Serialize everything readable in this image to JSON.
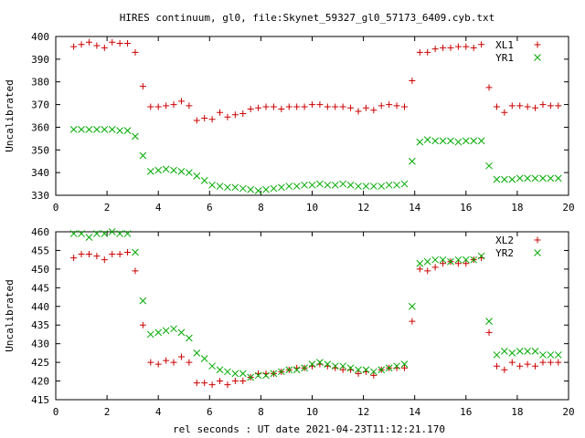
{
  "title": "HIRES continuum, gl0, file:Skynet_59327_gl0_57173_6409.cyb.txt",
  "xlabel": "rel seconds : UT date 2021-04-23T11:12:21.170",
  "colors": {
    "xl": "#cc0000",
    "yr": "#00aa00",
    "axis": "#000000"
  },
  "chart_data": [
    {
      "type": "scatter",
      "ylabel": "Uncalibrated",
      "xlim": [
        0,
        20
      ],
      "ylim": [
        330,
        400
      ],
      "xticks": [
        0,
        2,
        4,
        6,
        8,
        10,
        12,
        14,
        16,
        18,
        20
      ],
      "yticks": [
        330,
        340,
        350,
        360,
        370,
        380,
        390,
        400
      ],
      "legend_position": "top-right",
      "series": [
        {
          "name": "XL1",
          "marker": "plus",
          "x": [
            0.7,
            1.0,
            1.3,
            1.6,
            1.9,
            2.2,
            2.5,
            2.8,
            3.1,
            3.4,
            3.7,
            4.0,
            4.3,
            4.6,
            4.9,
            5.2,
            5.5,
            5.8,
            6.1,
            6.4,
            6.7,
            7.0,
            7.3,
            7.6,
            7.9,
            8.2,
            8.5,
            8.8,
            9.1,
            9.4,
            9.7,
            10.0,
            10.3,
            10.6,
            10.9,
            11.2,
            11.5,
            11.8,
            12.1,
            12.4,
            12.7,
            13.0,
            13.3,
            13.6,
            13.9,
            14.2,
            14.5,
            14.8,
            15.1,
            15.4,
            15.7,
            16.0,
            16.3,
            16.6,
            16.9,
            17.2,
            17.5,
            17.8,
            18.1,
            18.4,
            18.7,
            19.0,
            19.3,
            19.6
          ],
          "y": [
            395.5,
            396.5,
            397.5,
            396,
            395,
            397.5,
            397,
            397,
            393,
            378,
            369,
            369,
            369.5,
            370,
            371.5,
            369.5,
            363,
            364,
            363.5,
            366.5,
            364.5,
            365.5,
            366,
            368,
            368.5,
            369,
            369,
            368,
            369,
            369,
            369,
            370,
            370,
            369,
            369,
            369,
            368.5,
            367,
            368.5,
            367.5,
            369.5,
            370,
            369.5,
            369,
            380.5,
            393,
            393,
            394.5,
            395,
            395,
            395.5,
            395.5,
            395,
            396.5,
            377.5,
            369,
            366.5,
            369.5,
            369.5,
            369,
            368.5,
            370,
            369.5,
            369.5
          ]
        },
        {
          "name": "YR1",
          "marker": "x",
          "x": [
            0.7,
            1.0,
            1.3,
            1.6,
            1.9,
            2.2,
            2.5,
            2.8,
            3.1,
            3.4,
            3.7,
            4.0,
            4.3,
            4.6,
            4.9,
            5.2,
            5.5,
            5.8,
            6.1,
            6.4,
            6.7,
            7.0,
            7.3,
            7.6,
            7.9,
            8.2,
            8.5,
            8.8,
            9.1,
            9.4,
            9.7,
            10.0,
            10.3,
            10.6,
            10.9,
            11.2,
            11.5,
            11.8,
            12.1,
            12.4,
            12.7,
            13.0,
            13.3,
            13.6,
            13.9,
            14.2,
            14.5,
            14.8,
            15.1,
            15.4,
            15.7,
            16.0,
            16.3,
            16.6,
            16.9,
            17.2,
            17.5,
            17.8,
            18.1,
            18.4,
            18.7,
            19.0,
            19.3,
            19.6
          ],
          "y": [
            359,
            359,
            359,
            359,
            359,
            359,
            358.5,
            358.5,
            356,
            347.5,
            340.5,
            341,
            341.5,
            341,
            340.5,
            340,
            338.5,
            336.5,
            334.5,
            334,
            333.5,
            333.5,
            333,
            332.5,
            332,
            332.5,
            333,
            333.5,
            334,
            334,
            334.5,
            334.5,
            335,
            334.5,
            334.5,
            335,
            334.5,
            334,
            334,
            334,
            334,
            334.5,
            334.5,
            335,
            345,
            353.5,
            354.5,
            354,
            354,
            354,
            353.5,
            354,
            354,
            354,
            343,
            337,
            337,
            337,
            337.5,
            337.5,
            337.5,
            337.5,
            337.5,
            337.5
          ]
        }
      ]
    },
    {
      "type": "scatter",
      "ylabel": "Uncalibrated",
      "xlim": [
        0,
        20
      ],
      "ylim": [
        415,
        460
      ],
      "xticks": [
        0,
        2,
        4,
        6,
        8,
        10,
        12,
        14,
        16,
        18,
        20
      ],
      "yticks": [
        415,
        420,
        425,
        430,
        435,
        440,
        445,
        450,
        455,
        460
      ],
      "legend_position": "top-right",
      "series": [
        {
          "name": "XL2",
          "marker": "plus",
          "x": [
            0.7,
            1.0,
            1.3,
            1.6,
            1.9,
            2.2,
            2.5,
            2.8,
            3.1,
            3.4,
            3.7,
            4.0,
            4.3,
            4.6,
            4.9,
            5.2,
            5.5,
            5.8,
            6.1,
            6.4,
            6.7,
            7.0,
            7.3,
            7.6,
            7.9,
            8.2,
            8.5,
            8.8,
            9.1,
            9.4,
            9.7,
            10.0,
            10.3,
            10.6,
            10.9,
            11.2,
            11.5,
            11.8,
            12.1,
            12.4,
            12.7,
            13.0,
            13.3,
            13.6,
            13.9,
            14.2,
            14.5,
            14.8,
            15.1,
            15.4,
            15.7,
            16.0,
            16.3,
            16.6,
            16.9,
            17.2,
            17.5,
            17.8,
            18.1,
            18.4,
            18.7,
            19.0,
            19.3,
            19.6
          ],
          "y": [
            453,
            454,
            454,
            453.5,
            452.5,
            454,
            454,
            454.5,
            449.5,
            435,
            425,
            424.5,
            425.5,
            425,
            426.5,
            425,
            419.5,
            419.5,
            419,
            420,
            419,
            420,
            420,
            421,
            422,
            422,
            422,
            422.5,
            423,
            423.5,
            423.5,
            424,
            424.5,
            424,
            423.5,
            423,
            423,
            422,
            422.5,
            421.5,
            423,
            423.5,
            423.5,
            423.5,
            436,
            450,
            449.5,
            450.5,
            451.5,
            452,
            451.5,
            451.5,
            452.5,
            453,
            433,
            424,
            423,
            425,
            424,
            424.5,
            424,
            425,
            425,
            425
          ]
        },
        {
          "name": "YR2",
          "marker": "x",
          "x": [
            0.7,
            1.0,
            1.3,
            1.6,
            1.9,
            2.2,
            2.5,
            2.8,
            3.1,
            3.4,
            3.7,
            4.0,
            4.3,
            4.6,
            4.9,
            5.2,
            5.5,
            5.8,
            6.1,
            6.4,
            6.7,
            7.0,
            7.3,
            7.6,
            7.9,
            8.2,
            8.5,
            8.8,
            9.1,
            9.4,
            9.7,
            10.0,
            10.3,
            10.6,
            10.9,
            11.2,
            11.5,
            11.8,
            12.1,
            12.4,
            12.7,
            13.0,
            13.3,
            13.6,
            13.9,
            14.2,
            14.5,
            14.8,
            15.1,
            15.4,
            15.7,
            16.0,
            16.3,
            16.6,
            16.9,
            17.2,
            17.5,
            17.8,
            18.1,
            18.4,
            18.7,
            19.0,
            19.3,
            19.6
          ],
          "y": [
            459.5,
            459.5,
            458.5,
            459.5,
            459.5,
            460,
            459.5,
            459.5,
            454.5,
            441.5,
            432.5,
            433,
            433.5,
            434,
            433,
            431.5,
            427.5,
            426,
            424,
            423,
            422.5,
            422,
            422,
            421,
            421.5,
            421.5,
            422,
            422.5,
            423,
            423,
            423.5,
            424.5,
            425,
            424.5,
            424,
            424,
            423.5,
            423,
            423,
            422.5,
            423,
            423.5,
            424,
            424.5,
            440,
            451.5,
            452,
            452.5,
            452.5,
            452,
            452.5,
            452.5,
            452.5,
            453.5,
            436,
            427,
            428,
            427.5,
            428,
            428,
            428,
            427,
            427,
            427
          ]
        }
      ]
    }
  ]
}
